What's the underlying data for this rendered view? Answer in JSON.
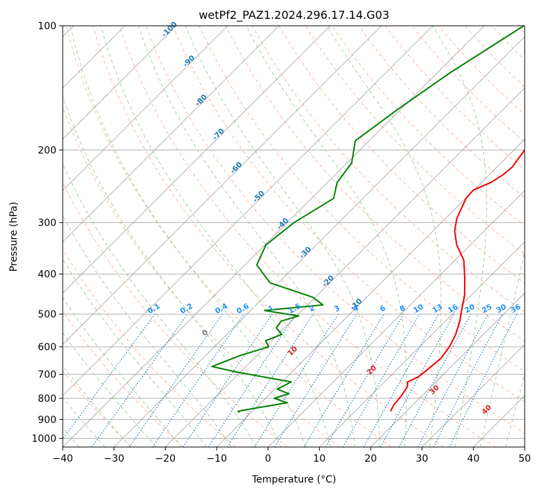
{
  "chart_data": {
    "type": "line",
    "title": "wetPf2_PAZ1.2024.296.17.14.G03",
    "xlabel": "Temperature (°C)",
    "ylabel": "Pressure (hPa)",
    "xlim": [
      -40,
      50
    ],
    "ylim": [
      1050,
      100
    ],
    "y_scale": "log",
    "grid": true,
    "x_ticks": [
      -40,
      -30,
      -20,
      -10,
      0,
      10,
      20,
      30,
      40,
      50
    ],
    "y_ticks": [
      1000,
      900,
      800,
      700,
      600,
      500,
      400,
      300,
      200,
      100
    ],
    "x_tick_labels": [
      "−40",
      "−30",
      "−20",
      "−10",
      "0",
      "10",
      "20",
      "30",
      "40",
      "50"
    ],
    "y_tick_labels": [
      "1000",
      "900",
      "800",
      "700",
      "600",
      "500",
      "400",
      "300",
      "200",
      "100"
    ],
    "isotherm_labels": [
      {
        "text": "-100",
        "p": 103
      },
      {
        "text": "-90",
        "p": 123
      },
      {
        "text": "-80",
        "p": 153
      },
      {
        "text": "-70",
        "p": 185
      },
      {
        "text": "-60",
        "p": 223
      },
      {
        "text": "-50",
        "p": 262
      },
      {
        "text": "-40",
        "p": 305
      },
      {
        "text": "-30",
        "p": 358
      },
      {
        "text": "-20",
        "p": 420
      },
      {
        "text": "-10",
        "p": 478
      }
    ],
    "mixing_ratio_labels": [
      "0.1",
      "0.2",
      "0.4",
      "0.6",
      "1",
      "1.5",
      "2",
      "3",
      "4",
      "6",
      "8",
      "10",
      "13",
      "16",
      "20",
      "25",
      "30",
      "36"
    ],
    "moist_adiabat_labels": [
      "0",
      "10",
      "20",
      "30",
      "40"
    ],
    "colors": {
      "temperature": "#ee0000",
      "dewpoint": "#008000",
      "grid": "#b0b0b0",
      "skew_isotherm": "#808080",
      "dry_adiabat": "#ff9f80",
      "moist_adiabat": "#90c890",
      "mixing_ratio": "#1f77b4",
      "mixing_label": "#1e90ff",
      "iso_label": "#1f77b4",
      "moist_label": "#d62728"
    },
    "series": [
      {
        "series_role": "temperature",
        "x": [
          16.9,
          16.3,
          16.0,
          15.4,
          14.5,
          15.6,
          16.0,
          16.4,
          15.8,
          14.6,
          12.8,
          11.1,
          8.7,
          5.5,
          1.7,
          -2.6,
          -5.7,
          -7.8,
          -9.0,
          -9.9,
          -10.1,
          -8.2,
          -7.3,
          -7.0,
          -7.9,
          -9.4,
          -12.2,
          -17.2,
          -22.0,
          -28.8
        ],
        "y": [
          860,
          830,
          790,
          750,
          730,
          710,
          680,
          640,
          600,
          560,
          520,
          490,
          450,
          410,
          370,
          340,
          315,
          293,
          275,
          262,
          250,
          240,
          230,
          220,
          200,
          180,
          160,
          140,
          120,
          100
        ]
      },
      {
        "series_role": "dewpoint",
        "x": [
          -12.3,
          -12.8,
          -11.0,
          -4.9,
          -8.3,
          -6.3,
          -9.5,
          -8.2,
          -21.0,
          -26.6,
          -23.3,
          -19.4,
          -21.2,
          -19.3,
          -21.6,
          -22.0,
          -19.6,
          -27.3,
          -17.0,
          -20.5,
          -31.6,
          -37.7,
          -39.8,
          -38.7,
          -35.7,
          -38.1,
          -39.1,
          -42.7,
          -40.6,
          -37.5,
          -32.3
        ],
        "y": [
          865,
          860,
          850,
          820,
          800,
          780,
          760,
          730,
          690,
          670,
          630,
          600,
          580,
          560,
          540,
          520,
          505,
          490,
          475,
          455,
          420,
          380,
          340,
          300,
          262,
          240,
          215,
          190,
          160,
          130,
          100
        ]
      }
    ]
  }
}
